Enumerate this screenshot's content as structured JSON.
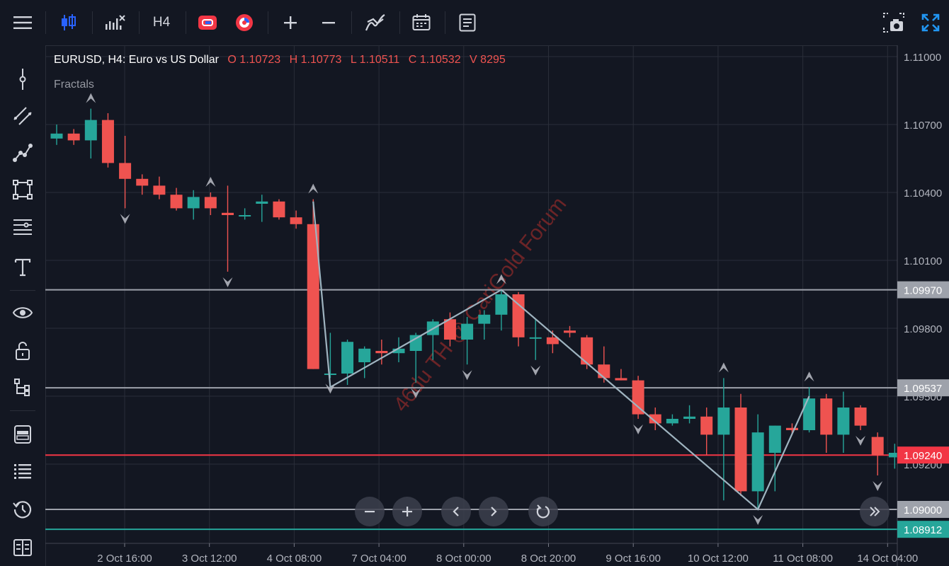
{
  "toolbar": {
    "menu_icon": "hamburger-icon",
    "chart_type_icon": "candlestick-icon",
    "indicators_icon": "indicators-icon",
    "timeframe": "H4",
    "compare_icon": "compare-icon",
    "alert_icon": "alert-icon",
    "zoom_in_icon": "plus-icon",
    "zoom_out_icon": "minus-icon",
    "strategy_icon": "strategy-icon",
    "calendar_icon": "calendar-icon",
    "notes_icon": "notes-icon",
    "snapshot_icon": "camera-icon",
    "fullscreen_icon": "fullscreen-icon"
  },
  "sidebar": {
    "items": [
      "crosshair-icon",
      "trend-line-icon",
      "path-icon",
      "rectangle-icon",
      "fib-icon",
      "text-icon",
      "eye-icon",
      "lock-icon",
      "tree-icon",
      "layers-icon",
      "object-list-icon",
      "history-icon",
      "data-window-icon"
    ]
  },
  "legend": {
    "symbol": "EURUSD, H4: Euro vs US Dollar",
    "open": "O 1.10723",
    "high": "H 1.10773",
    "low": "L 1.10511",
    "close": "C 1.10532",
    "volume": "V 8295",
    "indicator": "Fractals"
  },
  "watermark": "46du TH @ CariGold Forum",
  "colors": {
    "up": "#26a69a",
    "down": "#ef5350",
    "current_price": "#f23645",
    "grid": "#2a2e39",
    "zigzag": "#9fb4c0",
    "fractal": "#b2b5be"
  },
  "chart_data": {
    "type": "candlestick",
    "ylim": [
      1.0885,
      1.1105
    ],
    "y_ticks": [
      "1.11000",
      "1.10700",
      "1.10400",
      "1.10100",
      "1.09800",
      "1.09500",
      "1.09200"
    ],
    "x_ticks": [
      "2 Oct 16:00",
      "3 Oct 12:00",
      "4 Oct 08:00",
      "7 Oct 04:00",
      "8 Oct 00:00",
      "8 Oct 20:00",
      "9 Oct 16:00",
      "10 Oct 12:00",
      "11 Oct 08:00",
      "14 Oct 04:00"
    ],
    "candles": [
      {
        "o": 1.10638,
        "h": 1.107,
        "l": 1.1061,
        "c": 1.1066
      },
      {
        "o": 1.1066,
        "h": 1.1068,
        "l": 1.1061,
        "c": 1.1063
      },
      {
        "o": 1.1063,
        "h": 1.1077,
        "l": 1.1055,
        "c": 1.1072
      },
      {
        "o": 1.1072,
        "h": 1.1075,
        "l": 1.1051,
        "c": 1.1053
      },
      {
        "o": 1.1053,
        "h": 1.1065,
        "l": 1.1033,
        "c": 1.1046
      },
      {
        "o": 1.1046,
        "h": 1.1048,
        "l": 1.1039,
        "c": 1.1043
      },
      {
        "o": 1.1043,
        "h": 1.1047,
        "l": 1.1037,
        "c": 1.1039
      },
      {
        "o": 1.1039,
        "h": 1.1042,
        "l": 1.1032,
        "c": 1.1033
      },
      {
        "o": 1.1033,
        "h": 1.1041,
        "l": 1.1028,
        "c": 1.1038
      },
      {
        "o": 1.1038,
        "h": 1.104,
        "l": 1.103,
        "c": 1.1033
      },
      {
        "o": 1.1031,
        "h": 1.1043,
        "l": 1.1005,
        "c": 1.103
      },
      {
        "o": 1.103,
        "h": 1.1033,
        "l": 1.1028,
        "c": 1.103
      },
      {
        "o": 1.1035,
        "h": 1.1039,
        "l": 1.1027,
        "c": 1.1036
      },
      {
        "o": 1.1036,
        "h": 1.1037,
        "l": 1.1028,
        "c": 1.1029
      },
      {
        "o": 1.1029,
        "h": 1.1032,
        "l": 1.1024,
        "c": 1.1026
      },
      {
        "o": 1.1026,
        "h": 1.1037,
        "l": 1.0962,
        "c": 1.0962
      },
      {
        "o": 1.096,
        "h": 1.0978,
        "l": 1.0958,
        "c": 1.096
      },
      {
        "o": 1.096,
        "h": 1.0975,
        "l": 1.0955,
        "c": 1.0974
      },
      {
        "o": 1.0965,
        "h": 1.0972,
        "l": 1.0958,
        "c": 1.0971
      },
      {
        "o": 1.097,
        "h": 1.0975,
        "l": 1.0964,
        "c": 1.0969
      },
      {
        "o": 1.0969,
        "h": 1.0976,
        "l": 1.0965,
        "c": 1.0971
      },
      {
        "o": 1.097,
        "h": 1.0978,
        "l": 1.0956,
        "c": 1.0977
      },
      {
        "o": 1.0977,
        "h": 1.0984,
        "l": 1.0966,
        "c": 1.0983
      },
      {
        "o": 1.0984,
        "h": 1.0987,
        "l": 1.0972,
        "c": 1.0975
      },
      {
        "o": 1.0975,
        "h": 1.0985,
        "l": 1.0964,
        "c": 1.0982
      },
      {
        "o": 1.0982,
        "h": 1.0988,
        "l": 1.0975,
        "c": 1.0986
      },
      {
        "o": 1.0986,
        "h": 1.0997,
        "l": 1.0979,
        "c": 1.0995
      },
      {
        "o": 1.0995,
        "h": 1.0996,
        "l": 1.0972,
        "c": 1.0976
      },
      {
        "o": 1.0976,
        "h": 1.0984,
        "l": 1.0966,
        "c": 1.0976
      },
      {
        "o": 1.0976,
        "h": 1.0979,
        "l": 1.0969,
        "c": 1.0973
      },
      {
        "o": 1.0979,
        "h": 1.0981,
        "l": 1.0976,
        "c": 1.0978
      },
      {
        "o": 1.0976,
        "h": 1.0977,
        "l": 1.0962,
        "c": 1.0964
      },
      {
        "o": 1.0964,
        "h": 1.0972,
        "l": 1.0956,
        "c": 1.0958
      },
      {
        "o": 1.0958,
        "h": 1.0962,
        "l": 1.0957,
        "c": 1.0957
      },
      {
        "o": 1.0957,
        "h": 1.0959,
        "l": 1.094,
        "c": 1.0942
      },
      {
        "o": 1.0942,
        "h": 1.0945,
        "l": 1.0935,
        "c": 1.0938
      },
      {
        "o": 1.0938,
        "h": 1.0942,
        "l": 1.0937,
        "c": 1.094
      },
      {
        "o": 1.094,
        "h": 1.0946,
        "l": 1.0938,
        "c": 1.0941
      },
      {
        "o": 1.0941,
        "h": 1.0945,
        "l": 1.0924,
        "c": 1.0933
      },
      {
        "o": 1.0933,
        "h": 1.0958,
        "l": 1.0904,
        "c": 1.0945
      },
      {
        "o": 1.0945,
        "h": 1.0951,
        "l": 1.0906,
        "c": 1.0908
      },
      {
        "o": 1.0908,
        "h": 1.0942,
        "l": 1.09,
        "c": 1.0934
      },
      {
        "o": 1.0925,
        "h": 1.0937,
        "l": 1.0908,
        "c": 1.0937
      },
      {
        "o": 1.0936,
        "h": 1.0938,
        "l": 1.0933,
        "c": 1.0935
      },
      {
        "o": 1.0935,
        "h": 1.0954,
        "l": 1.0934,
        "c": 1.0949
      },
      {
        "o": 1.0949,
        "h": 1.0951,
        "l": 1.0925,
        "c": 1.0933
      },
      {
        "o": 1.0933,
        "h": 1.0952,
        "l": 1.0925,
        "c": 1.0945
      },
      {
        "o": 1.0945,
        "h": 1.0946,
        "l": 1.0935,
        "c": 1.0937
      },
      {
        "o": 1.0932,
        "h": 1.0934,
        "l": 1.0915,
        "c": 1.0924
      },
      {
        "o": 1.0923,
        "h": 1.0929,
        "l": 1.0918,
        "c": 1.0925
      }
    ],
    "fractals_up": [
      2,
      9,
      15,
      26,
      39,
      44
    ],
    "fractals_down": [
      4,
      10,
      16,
      21,
      24,
      28,
      34,
      41,
      47,
      48
    ],
    "zigzag": [
      [
        15,
        1.1036
      ],
      [
        16,
        1.0954
      ],
      [
        26,
        1.0997
      ],
      [
        41,
        1.09
      ],
      [
        44,
        1.095
      ]
    ],
    "h_lines": [
      {
        "price": 1.0997,
        "label": "1.09970",
        "color": "#9ea2ab"
      },
      {
        "price": 1.09537,
        "label": "1.09537",
        "color": "#9ea2ab"
      },
      {
        "price": 1.0924,
        "label": "1.09240",
        "color": "#f23645"
      },
      {
        "price": 1.09,
        "label": "1.09000",
        "color": "#9ea2ab"
      },
      {
        "price": 1.08912,
        "label": "1.08912",
        "color": "#26a69a"
      }
    ]
  },
  "nav": {
    "zoom_out": "zoom-out-icon",
    "zoom_in": "zoom-in-icon",
    "scroll_left": "chevron-left-icon",
    "scroll_right": "chevron-right-icon",
    "reset": "reset-icon",
    "go_latest": "double-chevron-right-icon"
  }
}
